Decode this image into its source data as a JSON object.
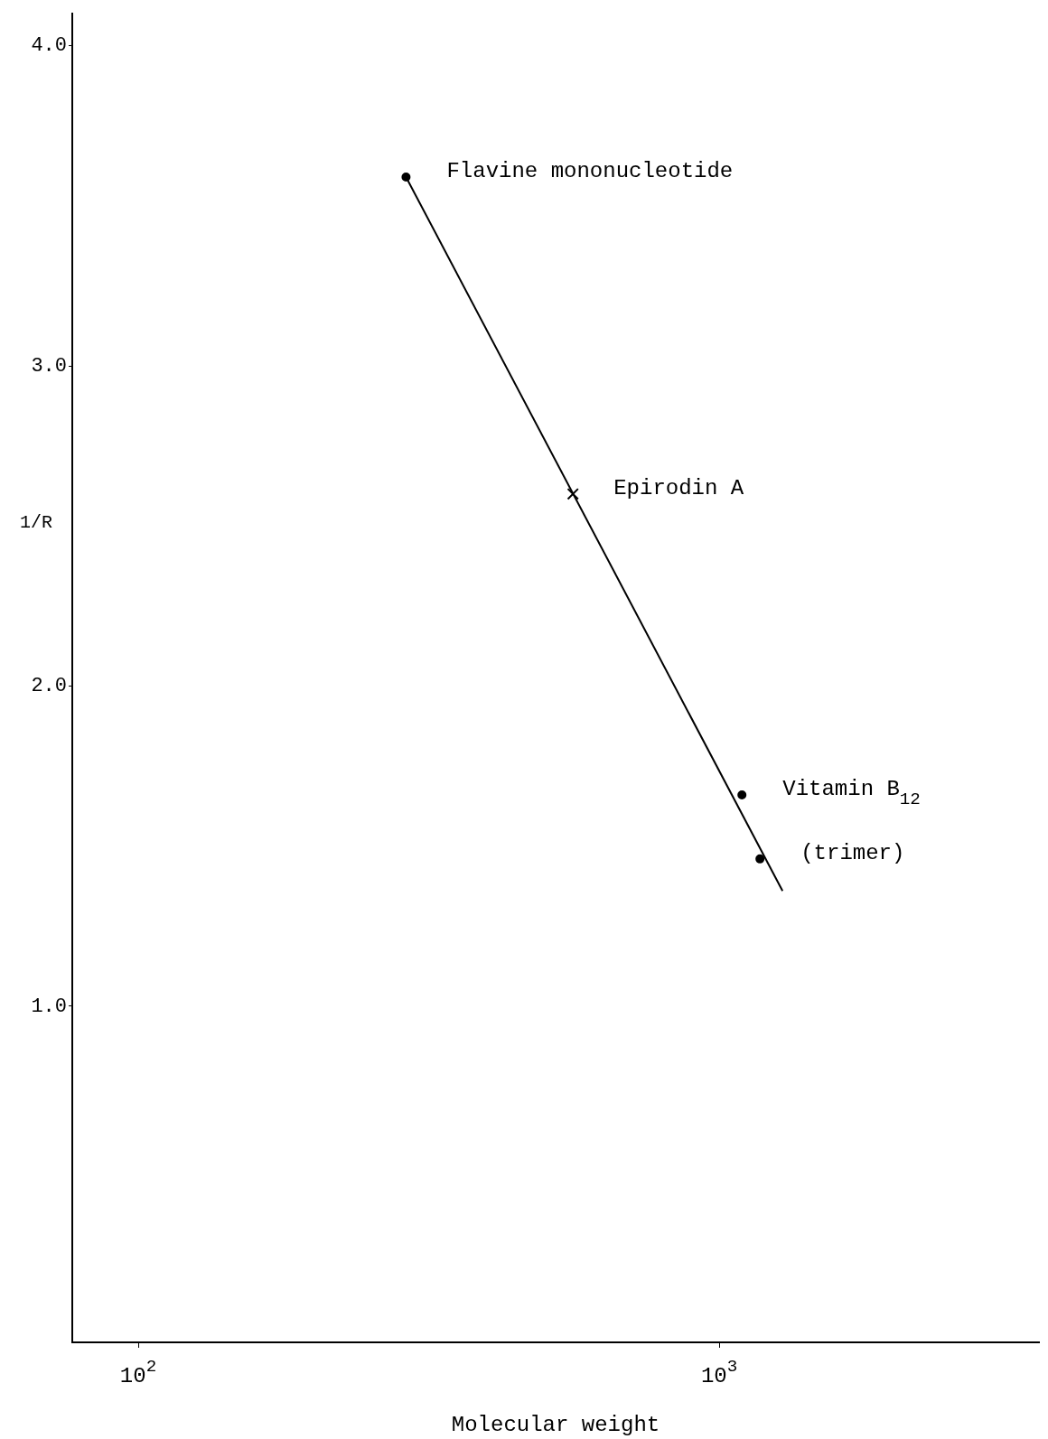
{
  "chart_data": {
    "type": "scatter",
    "xlabel": "Molecular weight",
    "ylabel": "1/R",
    "log": "x",
    "grid": false,
    "legend": false,
    "xlim": [
      77,
      3550
    ],
    "ylim": [
      -0.05,
      4.1
    ],
    "xticks": [
      {
        "value": 100,
        "label": "10$^{2}$"
      },
      {
        "value": 1000,
        "label": "10$^{3}$"
      }
    ],
    "yticks": [
      {
        "value": 1,
        "label": "1.0"
      },
      {
        "value": 2,
        "label": "2.0"
      },
      {
        "value": 3,
        "label": "3.0"
      },
      {
        "value": 4,
        "label": "4.0"
      }
    ],
    "series": [
      {
        "type": "scatter",
        "marker": "circle",
        "color": "#000000",
        "x": [
          289,
          1094,
          1175
        ],
        "values": [
          3.59,
          1.66,
          1.46
        ]
      },
      {
        "type": "scatter",
        "marker": "cross",
        "color": "#000000",
        "x": [
          560
        ],
        "values": [
          2.6
        ]
      },
      {
        "type": "line",
        "marker": "none",
        "line_style": "solid",
        "color": "#000000",
        "x": [
          289,
          1285
        ],
        "values": [
          3.59,
          1.36
        ]
      }
    ],
    "annotations": [
      {
        "text": "Flavine mononucleotide",
        "x": 289,
        "y": 3.59
      },
      {
        "text": "Epirodin A",
        "x": 560,
        "y": 2.6
      },
      {
        "text": "Vitamin B$_{12}$",
        "x": 1094,
        "y": 1.66
      },
      {
        "text": "(trimer)",
        "x": 1175,
        "y": 1.46
      }
    ]
  }
}
